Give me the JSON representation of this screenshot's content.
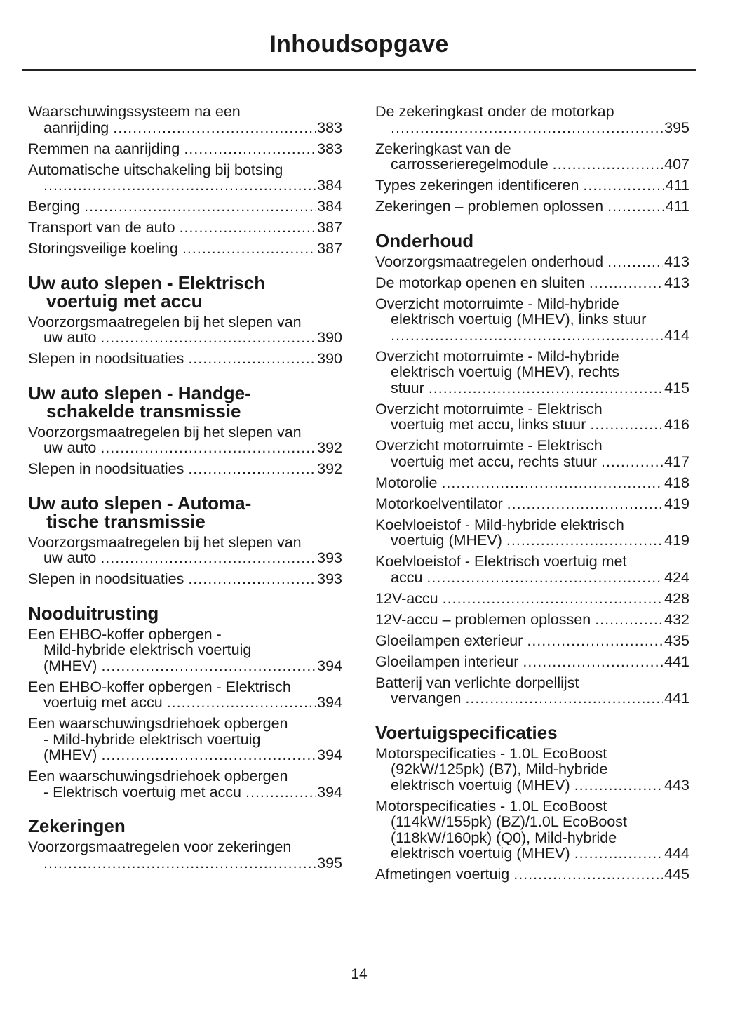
{
  "title": "Inhoudsopgave",
  "page_number": "14",
  "columns": [
    [
      {
        "type": "entry",
        "lines": [
          "Waarschuwingssysteem na een",
          "aanrijding"
        ],
        "page": "383"
      },
      {
        "type": "entry",
        "lines": [
          "Remmen na aanrijding"
        ],
        "page": "383"
      },
      {
        "type": "entry",
        "lines": [
          "Automatische uitschakeling bij botsing",
          ""
        ],
        "page": "384"
      },
      {
        "type": "entry",
        "lines": [
          "Berging"
        ],
        "page": "384"
      },
      {
        "type": "entry",
        "lines": [
          "Transport van de auto"
        ],
        "page": "387"
      },
      {
        "type": "entry",
        "lines": [
          "Storingsveilige koeling"
        ],
        "page": "387"
      },
      {
        "type": "heading",
        "lines": [
          "Uw auto slepen - Elektrisch",
          "voertuig met accu"
        ]
      },
      {
        "type": "entry",
        "lines": [
          "Voorzorgsmaatregelen bij het slepen van",
          "uw auto"
        ],
        "page": "390"
      },
      {
        "type": "entry",
        "lines": [
          "Slepen in noodsituaties"
        ],
        "page": "390"
      },
      {
        "type": "heading",
        "lines": [
          "Uw auto slepen - Handge-",
          "schakelde transmissie"
        ]
      },
      {
        "type": "entry",
        "lines": [
          "Voorzorgsmaatregelen bij het slepen van",
          "uw auto"
        ],
        "page": "392"
      },
      {
        "type": "entry",
        "lines": [
          "Slepen in noodsituaties"
        ],
        "page": "392"
      },
      {
        "type": "heading",
        "lines": [
          "Uw auto slepen - Automa-",
          "tische transmissie"
        ]
      },
      {
        "type": "entry",
        "lines": [
          "Voorzorgsmaatregelen bij het slepen van",
          "uw auto"
        ],
        "page": "393"
      },
      {
        "type": "entry",
        "lines": [
          "Slepen in noodsituaties"
        ],
        "page": "393"
      },
      {
        "type": "heading",
        "lines": [
          "Nooduitrusting"
        ]
      },
      {
        "type": "entry",
        "lines": [
          "Een EHBO-koffer opbergen -",
          "Mild-hybride elektrisch voertuig",
          "(MHEV)"
        ],
        "page": "394"
      },
      {
        "type": "entry",
        "lines": [
          "Een EHBO-koffer opbergen - Elektrisch",
          "voertuig met accu"
        ],
        "page": "394"
      },
      {
        "type": "entry",
        "lines": [
          "Een waarschuwingsdriehoek opbergen",
          "- Mild-hybride elektrisch voertuig",
          "(MHEV)"
        ],
        "page": "394"
      },
      {
        "type": "entry",
        "lines": [
          "Een waarschuwingsdriehoek opbergen",
          "- Elektrisch voertuig met accu"
        ],
        "page": "394"
      },
      {
        "type": "heading",
        "lines": [
          "Zekeringen"
        ]
      },
      {
        "type": "entry",
        "lines": [
          "Voorzorgsmaatregelen voor zekeringen",
          ""
        ],
        "page": "395"
      }
    ],
    [
      {
        "type": "entry",
        "lines": [
          "De zekeringkast onder de motorkap",
          ""
        ],
        "page": "395"
      },
      {
        "type": "entry",
        "lines": [
          "Zekeringkast van de",
          "carrosserieregelmodule"
        ],
        "page": "407"
      },
      {
        "type": "entry",
        "lines": [
          "Types zekeringen identificeren"
        ],
        "page": "411"
      },
      {
        "type": "entry",
        "lines": [
          "Zekeringen – problemen oplossen"
        ],
        "page": "411"
      },
      {
        "type": "heading",
        "lines": [
          "Onderhoud"
        ]
      },
      {
        "type": "entry",
        "lines": [
          "Voorzorgsmaatregelen onderhoud"
        ],
        "page": "413"
      },
      {
        "type": "entry",
        "lines": [
          "De motorkap openen en sluiten"
        ],
        "page": "413"
      },
      {
        "type": "entry",
        "lines": [
          "Overzicht motorruimte - Mild-hybride",
          "elektrisch voertuig (MHEV), links stuur",
          ""
        ],
        "page": "414"
      },
      {
        "type": "entry",
        "lines": [
          "Overzicht motorruimte - Mild-hybride",
          "elektrisch voertuig (MHEV), rechts",
          "stuur"
        ],
        "page": "415"
      },
      {
        "type": "entry",
        "lines": [
          "Overzicht motorruimte - Elektrisch",
          "voertuig met accu, links stuur"
        ],
        "page": "416"
      },
      {
        "type": "entry",
        "lines": [
          "Overzicht motorruimte - Elektrisch",
          "voertuig met accu, rechts stuur"
        ],
        "page": "417"
      },
      {
        "type": "entry",
        "lines": [
          "Motorolie"
        ],
        "page": "418"
      },
      {
        "type": "entry",
        "lines": [
          "Motorkoelventilator"
        ],
        "page": "419"
      },
      {
        "type": "entry",
        "lines": [
          "Koelvloeistof - Mild-hybride elektrisch",
          "voertuig (MHEV)"
        ],
        "page": "419"
      },
      {
        "type": "entry",
        "lines": [
          "Koelvloeistof - Elektrisch voertuig met",
          "accu"
        ],
        "page": "424"
      },
      {
        "type": "entry",
        "lines": [
          "12V-accu"
        ],
        "page": "428"
      },
      {
        "type": "entry",
        "lines": [
          "12V-accu – problemen oplossen"
        ],
        "page": "432"
      },
      {
        "type": "entry",
        "lines": [
          "Gloeilampen exterieur"
        ],
        "page": "435"
      },
      {
        "type": "entry",
        "lines": [
          "Gloeilampen interieur"
        ],
        "page": "441"
      },
      {
        "type": "entry",
        "lines": [
          "Batterij van verlichte dorpellijst",
          "vervangen"
        ],
        "page": "441"
      },
      {
        "type": "heading",
        "lines": [
          "Voertuigspecificaties"
        ]
      },
      {
        "type": "entry",
        "lines": [
          "Motorspecificaties - 1.0L EcoBoost",
          "(92kW/125pk) (B7), Mild-hybride",
          "elektrisch voertuig (MHEV)"
        ],
        "page": "443"
      },
      {
        "type": "entry",
        "lines": [
          "Motorspecificaties - 1.0L EcoBoost",
          "(114kW/155pk) (BZ)/1.0L EcoBoost",
          "(118kW/160pk) (Q0), Mild-hybride",
          "elektrisch voertuig (MHEV)"
        ],
        "page": "444"
      },
      {
        "type": "entry",
        "lines": [
          "Afmetingen voertuig"
        ],
        "page": "445"
      }
    ]
  ]
}
